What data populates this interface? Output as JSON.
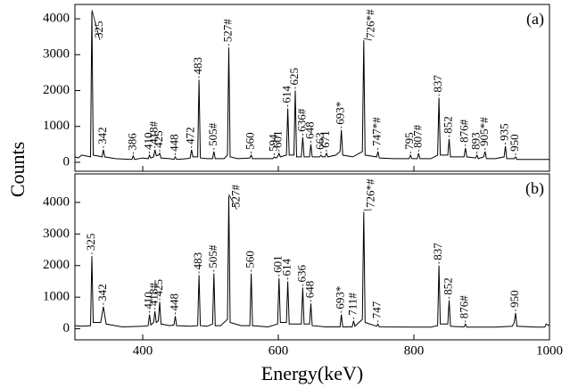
{
  "chart_data": [
    {
      "type": "line",
      "panel_label": "(a)",
      "y_label": "Counts",
      "color": "#000000",
      "ylim": [
        -250,
        4400
      ],
      "yticks": [
        0,
        1000,
        2000,
        3000,
        4000
      ],
      "x": [
        300,
        305,
        310,
        323,
        325,
        327,
        333,
        340,
        342,
        344,
        360,
        384,
        386,
        388,
        400,
        408,
        410,
        412,
        416,
        418,
        420,
        423,
        425,
        427,
        440,
        446,
        448,
        450,
        465,
        470,
        472,
        474,
        481,
        483,
        485,
        495,
        503,
        505,
        507,
        520,
        525,
        527,
        529,
        540,
        558,
        560,
        562,
        580,
        592,
        594,
        596,
        599,
        601,
        603,
        612,
        614,
        616,
        623,
        625,
        627,
        634,
        636,
        638,
        646,
        648,
        650,
        661,
        663,
        665,
        669,
        671,
        673,
        685,
        691,
        693,
        695,
        710,
        724,
        726,
        728,
        745,
        747,
        749,
        770,
        793,
        795,
        797,
        805,
        807,
        809,
        825,
        835,
        837,
        839,
        850,
        852,
        854,
        874,
        876,
        878,
        891,
        893,
        895,
        903,
        905,
        907,
        920,
        933,
        935,
        937,
        948,
        950,
        952,
        975,
        1000
      ],
      "values": [
        150,
        120,
        200,
        150,
        4200,
        200,
        180,
        150,
        350,
        150,
        100,
        80,
        180,
        80,
        120,
        100,
        200,
        120,
        150,
        350,
        180,
        200,
        250,
        120,
        100,
        80,
        150,
        80,
        100,
        120,
        350,
        150,
        150,
        2300,
        120,
        100,
        100,
        300,
        100,
        100,
        200,
        3200,
        150,
        100,
        120,
        200,
        100,
        100,
        100,
        150,
        120,
        150,
        250,
        150,
        200,
        1500,
        200,
        200,
        2000,
        150,
        150,
        700,
        150,
        150,
        500,
        150,
        150,
        200,
        150,
        150,
        250,
        150,
        200,
        300,
        900,
        200,
        150,
        300,
        3400,
        200,
        150,
        300,
        120,
        100,
        100,
        200,
        100,
        100,
        250,
        100,
        100,
        200,
        1800,
        200,
        200,
        650,
        150,
        150,
        400,
        150,
        120,
        200,
        100,
        150,
        300,
        100,
        100,
        150,
        450,
        100,
        100,
        150,
        80,
        80,
        80
      ],
      "annotations": [
        {
          "text": "325",
          "x": 325
        },
        {
          "text": "342",
          "x": 342
        },
        {
          "text": "386",
          "x": 386
        },
        {
          "text": "410",
          "x": 410
        },
        {
          "text": "418#",
          "x": 418
        },
        {
          "text": "425",
          "x": 425
        },
        {
          "text": "448",
          "x": 448
        },
        {
          "text": "472",
          "x": 472
        },
        {
          "text": "483",
          "x": 483
        },
        {
          "text": "505#",
          "x": 505
        },
        {
          "text": "527#",
          "x": 527
        },
        {
          "text": "560",
          "x": 560
        },
        {
          "text": "594",
          "x": 594
        },
        {
          "text": "601",
          "x": 601
        },
        {
          "text": "614",
          "x": 614
        },
        {
          "text": "625",
          "x": 625
        },
        {
          "text": "636#",
          "x": 636
        },
        {
          "text": "648",
          "x": 648
        },
        {
          "text": "663",
          "x": 663
        },
        {
          "text": "671",
          "x": 671
        },
        {
          "text": "693*",
          "x": 693
        },
        {
          "text": "726*#",
          "x": 726
        },
        {
          "text": "747*#",
          "x": 747
        },
        {
          "text": "795",
          "x": 795
        },
        {
          "text": "807#",
          "x": 807
        },
        {
          "text": "837",
          "x": 837
        },
        {
          "text": "852",
          "x": 852
        },
        {
          "text": "876#",
          "x": 876
        },
        {
          "text": "893",
          "x": 893
        },
        {
          "text": "905*#",
          "x": 905
        },
        {
          "text": "935",
          "x": 935
        },
        {
          "text": "950",
          "x": 950
        }
      ]
    },
    {
      "type": "line",
      "panel_label": "(b)",
      "x_label": "Energy(keV)",
      "color": "#000000",
      "xlim": [
        300,
        1000
      ],
      "xticks": [
        400,
        600,
        800,
        1000
      ],
      "ylim": [
        -350,
        4900
      ],
      "yticks": [
        0,
        1000,
        2000,
        3000,
        4000
      ],
      "x": [
        300,
        310,
        323,
        325,
        327,
        338,
        342,
        346,
        370,
        400,
        408,
        410,
        412,
        416,
        418,
        420,
        423,
        425,
        427,
        440,
        446,
        448,
        450,
        470,
        481,
        483,
        485,
        495,
        503,
        505,
        507,
        515,
        525,
        527,
        529,
        545,
        558,
        560,
        562,
        585,
        599,
        601,
        603,
        612,
        614,
        616,
        625,
        634,
        636,
        638,
        646,
        648,
        650,
        670,
        691,
        693,
        695,
        709,
        711,
        713,
        724,
        726,
        728,
        745,
        747,
        749,
        800,
        825,
        835,
        837,
        839,
        850,
        852,
        854,
        874,
        876,
        878,
        920,
        945,
        948,
        950,
        952,
        980,
        993,
        995,
        1000
      ],
      "values": [
        100,
        80,
        100,
        2300,
        200,
        200,
        700,
        150,
        60,
        80,
        100,
        450,
        120,
        200,
        550,
        200,
        250,
        850,
        150,
        100,
        120,
        400,
        100,
        80,
        100,
        1700,
        100,
        80,
        150,
        1750,
        100,
        100,
        300,
        4200,
        200,
        100,
        100,
        1750,
        100,
        60,
        150,
        1600,
        200,
        200,
        1500,
        150,
        150,
        150,
        1300,
        150,
        150,
        800,
        100,
        60,
        60,
        450,
        60,
        60,
        250,
        80,
        300,
        3700,
        200,
        80,
        150,
        60,
        50,
        50,
        100,
        2000,
        150,
        150,
        900,
        80,
        60,
        150,
        50,
        50,
        80,
        200,
        500,
        80,
        50,
        50,
        150,
        100
      ],
      "annotations": [
        {
          "text": "325",
          "x": 325
        },
        {
          "text": "342",
          "x": 342
        },
        {
          "text": "410",
          "x": 410
        },
        {
          "text": "418#",
          "x": 418
        },
        {
          "text": "425",
          "x": 425
        },
        {
          "text": "448",
          "x": 448
        },
        {
          "text": "483",
          "x": 483
        },
        {
          "text": "505#",
          "x": 505
        },
        {
          "text": "527#",
          "x": 527
        },
        {
          "text": "560",
          "x": 560
        },
        {
          "text": "601",
          "x": 601
        },
        {
          "text": "614",
          "x": 614
        },
        {
          "text": "636",
          "x": 636
        },
        {
          "text": "648",
          "x": 648
        },
        {
          "text": "693*",
          "x": 693
        },
        {
          "text": "711#",
          "x": 711
        },
        {
          "text": "726*#",
          "x": 726
        },
        {
          "text": "747",
          "x": 747
        },
        {
          "text": "837",
          "x": 837
        },
        {
          "text": "852",
          "x": 852
        },
        {
          "text": "876#",
          "x": 876
        },
        {
          "text": "950",
          "x": 950
        }
      ]
    }
  ]
}
